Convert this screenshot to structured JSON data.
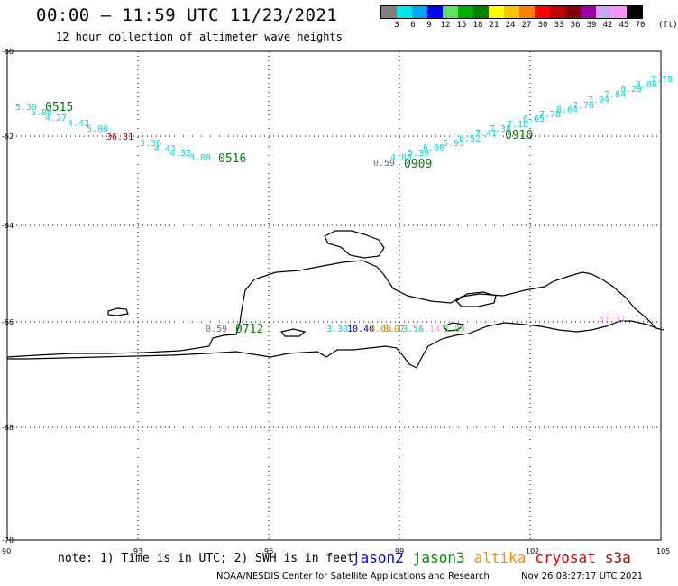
{
  "header": {
    "title": "00:00 – 11:59 UTC 11/23/2021",
    "subtitle": "12 hour collection of altimeter wave heights"
  },
  "legend": {
    "colors": [
      "#808080",
      "#00e5e5",
      "#00a5ff",
      "#0000ff",
      "#60e060",
      "#00b000",
      "#008000",
      "#ffff00",
      "#ffc000",
      "#ff8000",
      "#ff0000",
      "#c00000",
      "#800000",
      "#a000a0",
      "#c8a8f0",
      "#ff90ff",
      "#000000"
    ],
    "labels": [
      "3",
      "6",
      "9",
      "12",
      "15",
      "18",
      "21",
      "24",
      "27",
      "30",
      "33",
      "36",
      "39",
      "42",
      "45",
      "70"
    ],
    "unit": "(ft)"
  },
  "map": {
    "lon_ticks": [
      "90",
      "93",
      "96",
      "99",
      "102",
      "105"
    ],
    "lat_ticks": [
      "-60",
      "-62",
      "-64",
      "-66",
      "-68",
      "-70"
    ],
    "track_times": [
      {
        "text": "0515",
        "color": "#008000"
      },
      {
        "text": "0516",
        "color": "#008000"
      },
      {
        "text": "0909",
        "color": "#008000"
      },
      {
        "text": "0910",
        "color": "#008000"
      },
      {
        "text": "0712",
        "color": "#008000"
      }
    ],
    "wave_labels": [
      {
        "text": "5.39",
        "color": "#00d8d8"
      },
      {
        "text": "5.84",
        "color": "#00d8d8"
      },
      {
        "text": "4.27",
        "color": "#00d8d8"
      },
      {
        "text": "4.43",
        "color": "#00d8d8"
      },
      {
        "text": "5.00",
        "color": "#00d8d8"
      },
      {
        "text": "36.31",
        "color": "#8b0000"
      },
      {
        "text": "3.36",
        "color": "#00d8d8"
      },
      {
        "text": "4.43",
        "color": "#00d8d8"
      },
      {
        "text": "4.32",
        "color": "#00d8d8"
      },
      {
        "text": "3.88",
        "color": "#00d8d8"
      },
      {
        "text": "0.59",
        "color": "#707070"
      },
      {
        "text": "4.88",
        "color": "#00d8d8"
      },
      {
        "text": "5.39",
        "color": "#00d8d8"
      },
      {
        "text": "6.00",
        "color": "#00d8d8"
      },
      {
        "text": "5.93",
        "color": "#00d8d8"
      },
      {
        "text": "6.52",
        "color": "#00d8d8"
      },
      {
        "text": "7.41",
        "color": "#00d8d8"
      },
      {
        "text": "7.38",
        "color": "#00d8d8"
      },
      {
        "text": "7.18",
        "color": "#00d8d8"
      },
      {
        "text": "6.65",
        "color": "#00d8d8"
      },
      {
        "text": "7.78",
        "color": "#00d8d8"
      },
      {
        "text": "8.64",
        "color": "#00d8d8"
      },
      {
        "text": "7.78",
        "color": "#00d8d8"
      },
      {
        "text": "7.94",
        "color": "#00d8d8"
      },
      {
        "text": "7.84",
        "color": "#00d8d8"
      },
      {
        "text": "8.29",
        "color": "#00d8d8"
      },
      {
        "text": "8.86",
        "color": "#00d8d8"
      },
      {
        "text": "7.78",
        "color": "#00d8d8"
      },
      {
        "text": "0.59",
        "color": "#707070"
      },
      {
        "text": "3.38",
        "color": "#00d8d8"
      },
      {
        "text": "10.40",
        "color": "#0000c0"
      },
      {
        "text": "8.60",
        "color": "#ff8000"
      },
      {
        "text": "8.07",
        "color": "#c0a000"
      },
      {
        "text": "13.56",
        "color": "#00d8d8"
      },
      {
        "text": "71.14",
        "color": "#ff90ff"
      },
      {
        "text": "3.89",
        "color": "#60e060"
      },
      {
        "text": "57.31",
        "color": "#ff90ff"
      }
    ]
  },
  "footer": {
    "note": "note: 1) Time is in UTC; 2) SWH is in feet",
    "missions": [
      {
        "name": "jason2",
        "color": "#0000ff"
      },
      {
        "name": "jason3",
        "color": "#009000"
      },
      {
        "name": "altika",
        "color": "#ff8c00"
      },
      {
        "name": "cryosat",
        "color": "#e00000"
      },
      {
        "name": "s3a",
        "color": "#b00000"
      }
    ],
    "credit": "NOAA/NESDIS Center for Satellite Applications and Research",
    "timestamp": "Nov 26 08:27:17 UTC 2021"
  }
}
